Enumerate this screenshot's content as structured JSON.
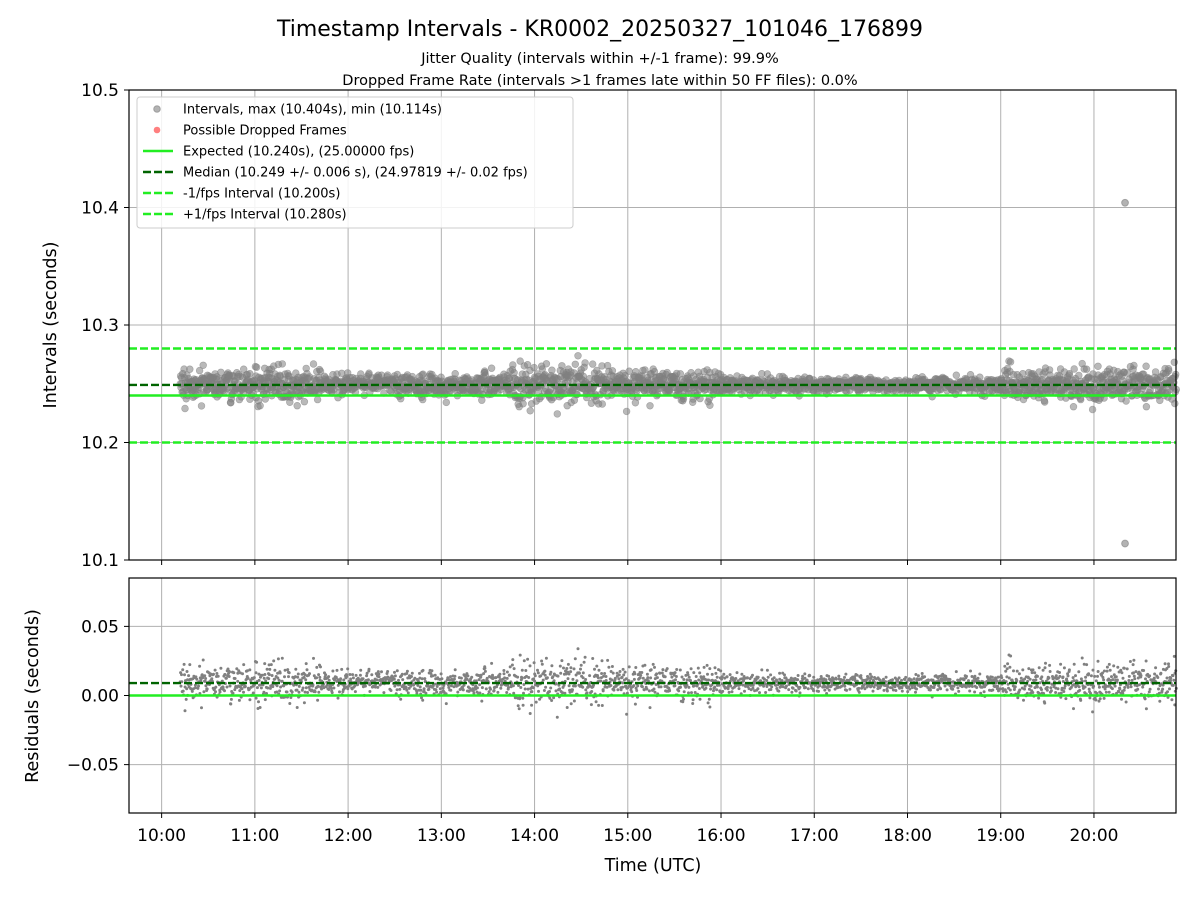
{
  "title": "Timestamp Intervals - KR0002_20250327_101046_176899",
  "subtitle_jitter": "Jitter Quality (intervals within +/-1 frame): 99.9%",
  "subtitle_dropped": "Dropped Frame Rate (intervals >1 frames late within 50 FF files): 0.0%",
  "colors": {
    "points": "#808080",
    "dropped": "#ff0000",
    "expected": "#22ee22",
    "median": "#006400",
    "bounds": "#22ee22",
    "grid": "#b0b0b0"
  },
  "chart_data": [
    {
      "type": "scatter",
      "ylabel": "Intervals (seconds)",
      "xlim_hours": [
        9.65,
        20.88
      ],
      "ylim": [
        10.1,
        10.5
      ],
      "y_ticks": [
        10.1,
        10.2,
        10.3,
        10.4,
        10.5
      ],
      "y_tick_labels": [
        "10.1",
        "10.2",
        "10.3",
        "10.4",
        "10.5"
      ],
      "grid": true,
      "legend_position": "upper-left",
      "legend": [
        "Intervals, max (10.404s), min (10.114s)",
        "Possible Dropped Frames",
        "Expected (10.240s), (25.00000 fps)",
        "Median (10.249 +/- 0.006 s), (24.97819 +/- 0.02 fps)",
        "-1/fps Interval (10.200s)",
        "+1/fps Interval (10.280s)"
      ],
      "expected": 10.24,
      "median": 10.249,
      "median_std": 0.006,
      "lower_bound": 10.2,
      "upper_bound": 10.28,
      "max_interval": 10.404,
      "min_interval": 10.114,
      "max_time": "20:20",
      "min_time": "20:20",
      "data_start": "10:12",
      "data_end": "20:53",
      "scatter_regions": [
        {
          "from": "10:12",
          "to": "11:45",
          "spread": 0.013
        },
        {
          "from": "11:45",
          "to": "12:30",
          "spread": 0.007
        },
        {
          "from": "12:30",
          "to": "13:45",
          "spread": 0.01
        },
        {
          "from": "13:45",
          "to": "14:45",
          "spread": 0.015
        },
        {
          "from": "14:45",
          "to": "16:00",
          "spread": 0.011
        },
        {
          "from": "16:00",
          "to": "18:00",
          "spread": 0.006
        },
        {
          "from": "18:00",
          "to": "19:00",
          "spread": 0.006
        },
        {
          "from": "19:00",
          "to": "20:53",
          "spread": 0.013
        }
      ]
    },
    {
      "type": "scatter",
      "ylabel": "Residuals (seconds)",
      "xlabel": "Time (UTC)",
      "xlim_hours": [
        9.65,
        20.88
      ],
      "ylim": [
        -0.085,
        0.085
      ],
      "y_ticks": [
        -0.05,
        0.0,
        0.05
      ],
      "y_tick_labels": [
        "−0.05",
        "0.00",
        "0.05"
      ],
      "x_tick_labels": [
        "10:00",
        "11:00",
        "12:00",
        "13:00",
        "14:00",
        "15:00",
        "16:00",
        "17:00",
        "18:00",
        "19:00",
        "20:00"
      ],
      "grid": true,
      "expected_residual": 0.0,
      "median_residual": 0.009
    }
  ]
}
